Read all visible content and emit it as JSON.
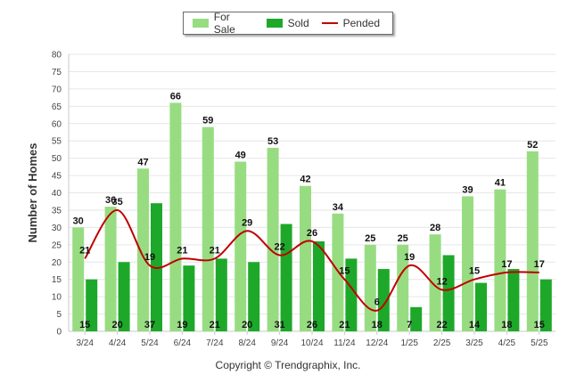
{
  "chart_data": {
    "type": "bar",
    "categories": [
      "3/24",
      "4/24",
      "5/24",
      "6/24",
      "7/24",
      "8/24",
      "9/24",
      "10/24",
      "11/24",
      "12/24",
      "1/25",
      "2/25",
      "3/25",
      "4/25",
      "5/25"
    ],
    "series": [
      {
        "name": "For Sale",
        "type": "bar",
        "color": "#98dc82",
        "values": [
          30,
          36,
          47,
          66,
          59,
          49,
          53,
          42,
          34,
          25,
          25,
          28,
          39,
          41,
          52
        ]
      },
      {
        "name": "Sold",
        "type": "bar",
        "color": "#1ea82a",
        "values": [
          15,
          20,
          37,
          19,
          21,
          20,
          31,
          26,
          21,
          18,
          7,
          22,
          14,
          18,
          15
        ]
      },
      {
        "name": "Pended",
        "type": "line",
        "color": "#c00000",
        "values": [
          21,
          35,
          19,
          21,
          21,
          29,
          22,
          26,
          15,
          6,
          19,
          12,
          15,
          17,
          17
        ]
      }
    ],
    "ylabel": "Number of Homes",
    "xlabel": "",
    "ylim": [
      0,
      80
    ],
    "yticks": [
      0,
      5,
      10,
      15,
      20,
      25,
      30,
      35,
      40,
      45,
      50,
      55,
      60,
      65,
      70,
      75,
      80
    ],
    "grid": true,
    "legend_position": "top-center"
  },
  "footer": {
    "copyright": "Copyright © Trendgraphix, Inc."
  }
}
